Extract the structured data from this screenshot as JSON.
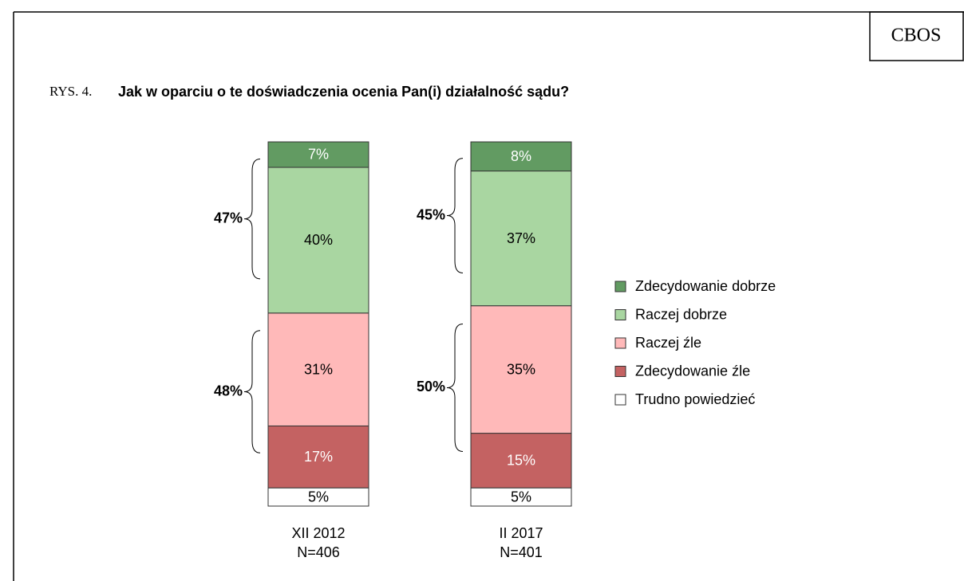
{
  "header": {
    "logo": "CBOS"
  },
  "chart_data": {
    "type": "stacked-bar",
    "figure_label": "RYS. 4.",
    "title": "Jak w oparciu o te doświadczenia ocenia Pan(i) działalność sądu?",
    "categories": [
      "XII 2012",
      "II 2017"
    ],
    "sample_sizes": [
      "N=406",
      "N=401"
    ],
    "ylim": [
      0,
      100
    ],
    "series": [
      {
        "name": "Zdecydowanie dobrze",
        "color": "#629b62",
        "label_color": "#ffffff",
        "values": [
          7,
          8
        ],
        "value_labels": [
          "7%",
          "8%"
        ]
      },
      {
        "name": "Raczej dobrze",
        "color": "#a9d6a1",
        "label_color": "#000000",
        "values": [
          40,
          37
        ],
        "value_labels": [
          "40%",
          "37%"
        ]
      },
      {
        "name": "Raczej źle",
        "color": "#ffb9b9",
        "label_color": "#000000",
        "values": [
          31,
          35
        ],
        "value_labels": [
          "31%",
          "35%"
        ]
      },
      {
        "name": "Zdecydowanie źle",
        "color": "#c46262",
        "label_color": "#ffffff",
        "values": [
          17,
          15
        ],
        "value_labels": [
          "17%",
          "15%"
        ]
      },
      {
        "name": "Trudno powiedzieć",
        "color": "#ffffff",
        "label_color": "#000000",
        "values": [
          5,
          5
        ],
        "value_labels": [
          "5%",
          "5%"
        ]
      }
    ],
    "positive_totals": {
      "values": [
        47,
        45
      ],
      "value_labels": [
        "47%",
        "45%"
      ]
    },
    "negative_totals": {
      "values": [
        48,
        50
      ],
      "value_labels": [
        "48%",
        "50%"
      ]
    }
  }
}
